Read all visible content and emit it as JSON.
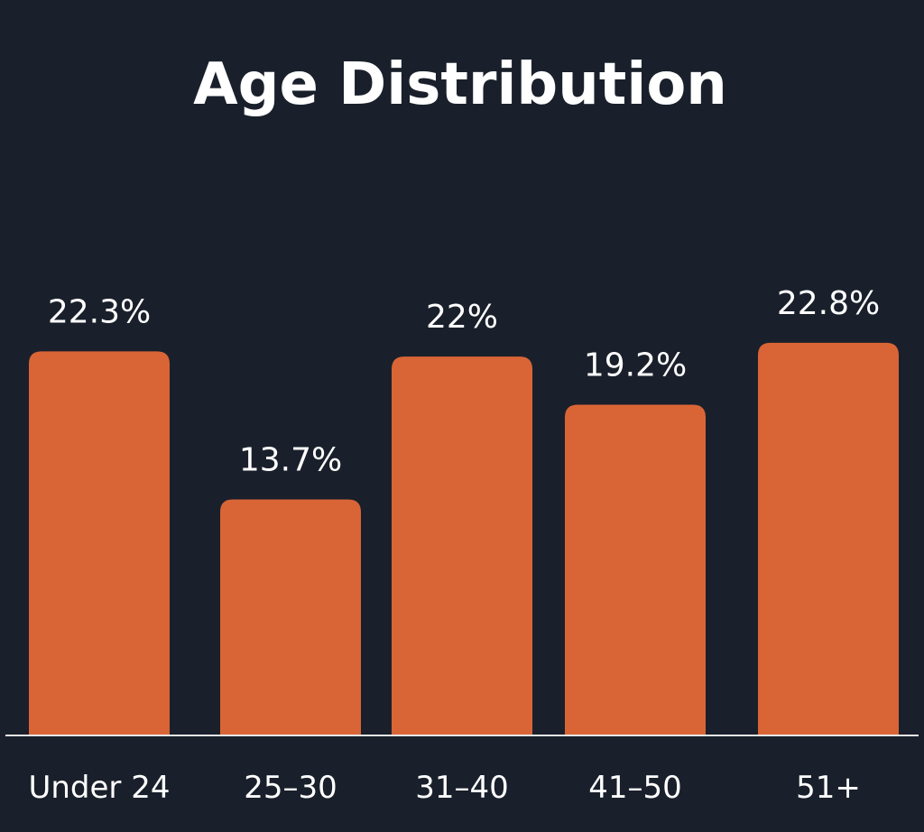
{
  "colors": {
    "background": "#1a202b",
    "bar": "#d96536",
    "text": "#ffffff",
    "axis": "#e6e6e6"
  },
  "chart_data": {
    "type": "bar",
    "title": "Age Distribution",
    "xlabel": "",
    "ylabel": "",
    "categories": [
      "Under 24",
      "25–30",
      "31–40",
      "41–50",
      "51+"
    ],
    "values": [
      22.3,
      13.7,
      22,
      19.2,
      22.8
    ],
    "value_labels": [
      "22.3%",
      "13.7%",
      "22%",
      "19.2%",
      "22.8%"
    ],
    "ylim": [
      0,
      24.1
    ],
    "grid": false,
    "legend": "none"
  }
}
